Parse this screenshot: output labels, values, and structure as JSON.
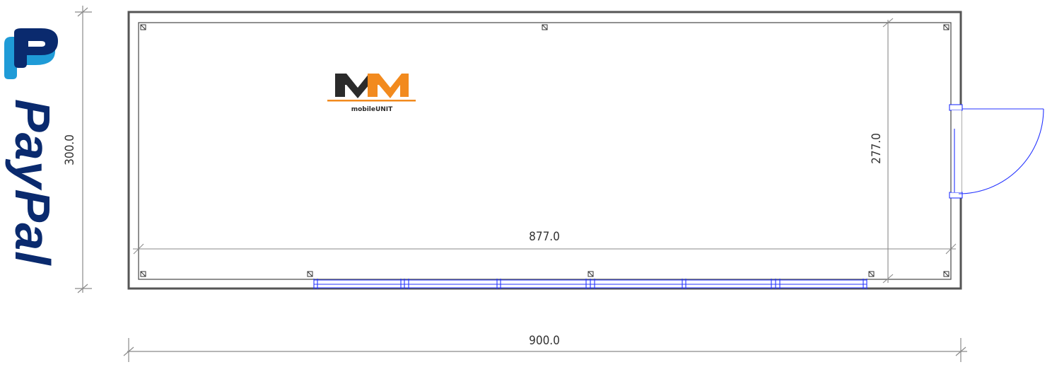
{
  "plan": {
    "dimension_width_outer": "900.0",
    "dimension_width_inner": "877.0",
    "dimension_depth_outer": "300.0",
    "dimension_depth_inner": "277.0"
  },
  "logo": {
    "mark": "MM",
    "caption": "mobileUNIT",
    "colors": {
      "dark": "#2b2b2b",
      "orange": "#f28a1e"
    }
  },
  "side_brand": {
    "text": "PayPal",
    "colors": {
      "dark": "#0a2a6e",
      "light": "#1f9bd7"
    }
  },
  "colors": {
    "wall": "#555555",
    "dimension_line": "#8a8a8a",
    "window_door": "#2433ff"
  }
}
